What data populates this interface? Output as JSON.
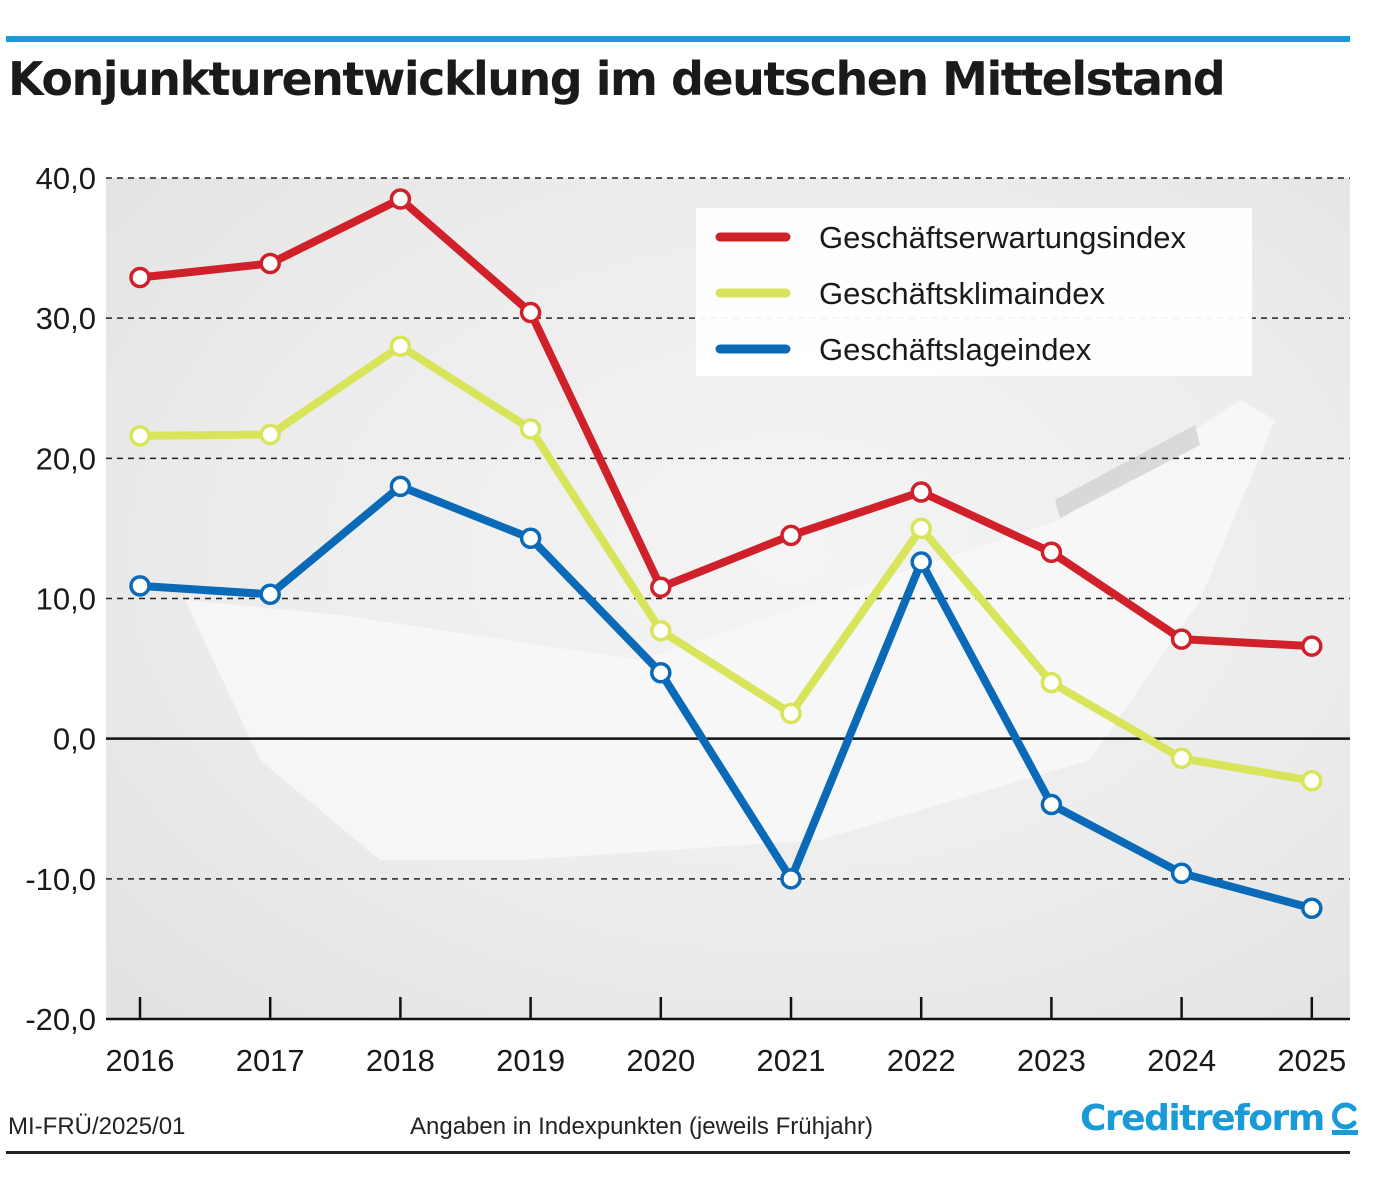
{
  "header": {
    "title": "Konjunkturentwicklung im deutschen Mittelstand"
  },
  "footer": {
    "code": "MI-FRÜ/2025/01",
    "note": "Angaben in Indexpunkten (jeweils Frühjahr)",
    "brand": "Creditreform"
  },
  "colors": {
    "accent": "#1a9bd7",
    "erwartung": "#d0202a",
    "klima": "#d8e45a",
    "lage": "#0a6ab8"
  },
  "chart_data": {
    "type": "line",
    "title": "Konjunkturentwicklung im deutschen Mittelstand",
    "xlabel": "",
    "ylabel": "",
    "x": [
      "2016",
      "2017",
      "2018",
      "2019",
      "2020",
      "2021",
      "2022",
      "2023",
      "2024",
      "2025"
    ],
    "ylim": [
      -20,
      40
    ],
    "yticks": [
      40,
      30,
      20,
      10,
      0,
      -10,
      -20
    ],
    "ytick_labels": [
      "40,0",
      "30,0",
      "20,0",
      "10,0",
      "0,0",
      "-10,0",
      "-20,0"
    ],
    "grid": "horizontal dashed",
    "legend_position": "top-right",
    "series": [
      {
        "name": "Geschäftserwartungsindex",
        "color": "#d0202a",
        "values": [
          32.9,
          33.9,
          38.5,
          30.4,
          10.8,
          14.5,
          17.6,
          13.3,
          7.1,
          6.6
        ]
      },
      {
        "name": "Geschäftsklimaindex",
        "color": "#d8e45a",
        "values": [
          21.6,
          21.7,
          28.0,
          22.1,
          7.7,
          1.8,
          15.0,
          4.0,
          -1.4,
          -3.0
        ]
      },
      {
        "name": "Geschäftslageindex",
        "color": "#0a6ab8",
        "values": [
          10.9,
          10.3,
          18.0,
          14.3,
          4.7,
          -10.0,
          12.6,
          -4.7,
          -9.6,
          -12.1
        ]
      }
    ]
  }
}
